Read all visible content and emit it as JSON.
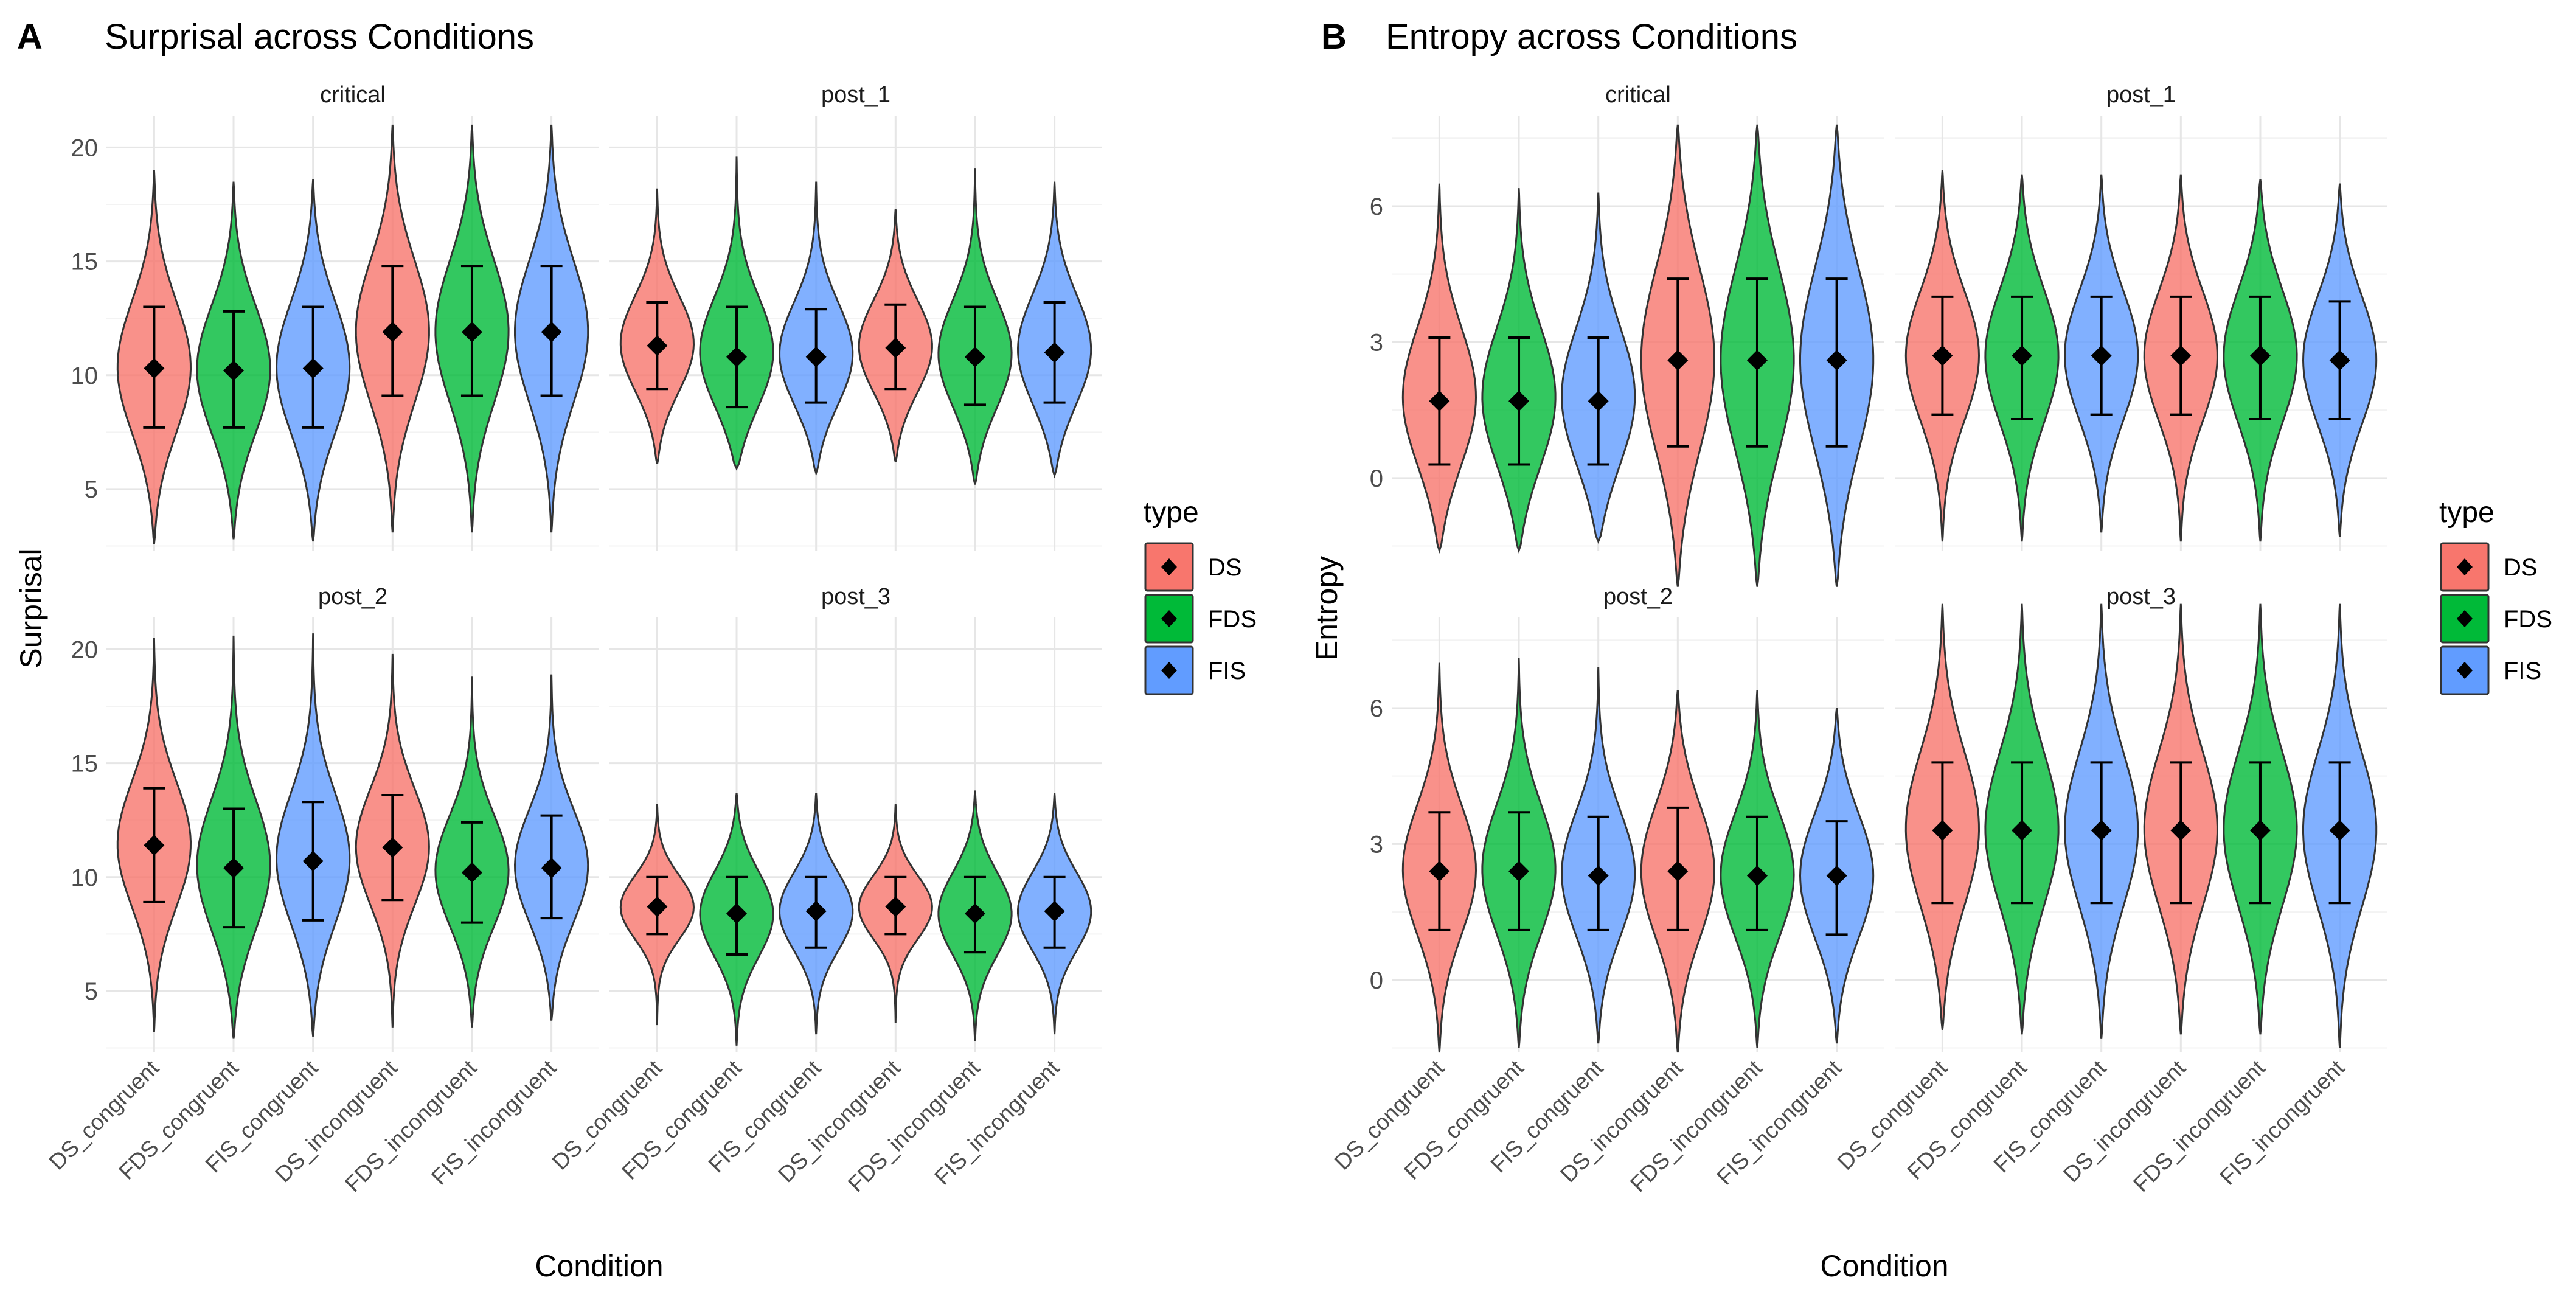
{
  "figure_panels": [
    {
      "letter": "A",
      "title": "Surprisal across Conditions"
    },
    {
      "letter": "B",
      "title": "Entropy across Conditions"
    }
  ],
  "legend": {
    "title": "type",
    "items": [
      {
        "label": "DS",
        "color": "#F8766D"
      },
      {
        "label": "FDS",
        "color": "#00BA38"
      },
      {
        "label": "FIS",
        "color": "#619CFF"
      }
    ]
  },
  "chart_data": [
    {
      "type": "violin",
      "panel": "A",
      "title": "Surprisal across Conditions",
      "xlabel": "Condition",
      "ylabel": "Surprisal",
      "ylim": [
        2.3,
        21.4
      ],
      "yticks": [
        5,
        10,
        15,
        20
      ],
      "categories": [
        "DS_congruent",
        "FDS_congruent",
        "FIS_congruent",
        "DS_incongruent",
        "FDS_incongruent",
        "FIS_incongruent"
      ],
      "category_types": [
        "DS",
        "FDS",
        "FIS",
        "DS",
        "FDS",
        "FIS"
      ],
      "summary": "mean ± SD (diamond with error bars)",
      "facets": [
        {
          "name": "critical",
          "mean": [
            10.3,
            10.2,
            10.3,
            11.9,
            11.9,
            11.9
          ],
          "sd_lo": [
            7.7,
            7.7,
            7.7,
            9.1,
            9.1,
            9.1
          ],
          "sd_hi": [
            13.0,
            12.8,
            13.0,
            14.8,
            14.8,
            14.8
          ],
          "min": [
            2.6,
            2.8,
            2.7,
            3.1,
            3.1,
            3.1
          ],
          "max": [
            19.0,
            18.5,
            18.6,
            21.0,
            21.0,
            21.0
          ]
        },
        {
          "name": "post_1",
          "mean": [
            11.3,
            10.8,
            10.8,
            11.2,
            10.8,
            11.0
          ],
          "sd_lo": [
            9.4,
            8.6,
            8.8,
            9.4,
            8.7,
            8.8
          ],
          "sd_hi": [
            13.2,
            13.0,
            12.9,
            13.1,
            13.0,
            13.2
          ],
          "min": [
            6.1,
            5.9,
            5.7,
            6.2,
            5.2,
            5.6
          ],
          "max": [
            18.2,
            19.6,
            18.5,
            17.3,
            19.1,
            18.5
          ]
        },
        {
          "name": "post_2",
          "mean": [
            11.4,
            10.4,
            10.7,
            11.3,
            10.2,
            10.4
          ],
          "sd_lo": [
            8.9,
            7.8,
            8.1,
            9.0,
            8.0,
            8.2
          ],
          "sd_hi": [
            13.9,
            13.0,
            13.3,
            13.6,
            12.4,
            12.7
          ],
          "min": [
            3.2,
            2.9,
            3.0,
            3.4,
            3.4,
            3.7
          ],
          "max": [
            20.5,
            20.6,
            20.7,
            19.8,
            18.8,
            18.9
          ]
        },
        {
          "name": "post_3",
          "mean": [
            8.7,
            8.4,
            8.5,
            8.7,
            8.4,
            8.5
          ],
          "sd_lo": [
            7.5,
            6.6,
            6.9,
            7.5,
            6.7,
            6.9
          ],
          "sd_hi": [
            10.0,
            10.0,
            10.0,
            10.0,
            10.0,
            10.0
          ],
          "min": [
            3.5,
            2.6,
            3.1,
            3.6,
            2.8,
            3.1
          ],
          "max": [
            13.2,
            13.7,
            13.7,
            13.2,
            13.8,
            13.7
          ]
        }
      ]
    },
    {
      "type": "violin",
      "panel": "B",
      "title": "Entropy across Conditions",
      "xlabel": "Condition",
      "ylabel": "Entropy",
      "ylim": [
        -1.6,
        8.0
      ],
      "yticks": [
        0,
        3,
        6
      ],
      "categories": [
        "DS_congruent",
        "FDS_congruent",
        "FIS_congruent",
        "DS_incongruent",
        "FDS_incongruent",
        "FIS_incongruent"
      ],
      "category_types": [
        "DS",
        "FDS",
        "FIS",
        "DS",
        "FDS",
        "FIS"
      ],
      "summary": "mean ± SD (diamond with error bars)",
      "facets": [
        {
          "name": "critical",
          "mean": [
            1.7,
            1.7,
            1.7,
            2.6,
            2.6,
            2.6
          ],
          "sd_lo": [
            0.3,
            0.3,
            0.3,
            0.7,
            0.7,
            0.7
          ],
          "sd_hi": [
            3.1,
            3.1,
            3.1,
            4.4,
            4.4,
            4.4
          ],
          "min": [
            -1.6,
            -1.6,
            -1.4,
            -2.4,
            -2.4,
            -2.4
          ],
          "max": [
            6.5,
            6.4,
            6.3,
            7.8,
            7.8,
            7.8
          ]
        },
        {
          "name": "post_1",
          "mean": [
            2.7,
            2.7,
            2.7,
            2.7,
            2.7,
            2.6
          ],
          "sd_lo": [
            1.4,
            1.3,
            1.4,
            1.4,
            1.3,
            1.3
          ],
          "sd_hi": [
            4.0,
            4.0,
            4.0,
            4.0,
            4.0,
            3.9
          ],
          "min": [
            -1.4,
            -1.4,
            -1.2,
            -1.4,
            -1.4,
            -1.3
          ],
          "max": [
            6.8,
            6.7,
            6.7,
            6.7,
            6.6,
            6.5
          ]
        },
        {
          "name": "post_2",
          "mean": [
            2.4,
            2.4,
            2.3,
            2.4,
            2.3,
            2.3
          ],
          "sd_lo": [
            1.1,
            1.1,
            1.1,
            1.1,
            1.1,
            1.0
          ],
          "sd_hi": [
            3.7,
            3.7,
            3.6,
            3.8,
            3.6,
            3.5
          ],
          "min": [
            -1.6,
            -1.5,
            -1.4,
            -1.6,
            -1.5,
            -1.4
          ],
          "max": [
            7.0,
            7.1,
            6.9,
            6.4,
            6.4,
            6.0
          ]
        },
        {
          "name": "post_3",
          "mean": [
            3.3,
            3.3,
            3.3,
            3.3,
            3.3,
            3.3
          ],
          "sd_lo": [
            1.7,
            1.7,
            1.7,
            1.7,
            1.7,
            1.7
          ],
          "sd_hi": [
            4.8,
            4.8,
            4.8,
            4.8,
            4.8,
            4.8
          ],
          "min": [
            -1.1,
            -1.2,
            -1.3,
            -1.2,
            -1.2,
            -1.5
          ],
          "max": [
            8.3,
            8.3,
            8.3,
            8.3,
            8.3,
            8.3
          ]
        }
      ]
    }
  ]
}
